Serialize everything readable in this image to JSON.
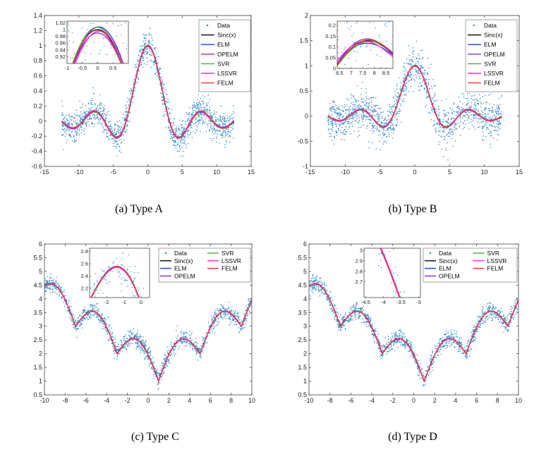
{
  "figure": {
    "captions": [
      "(a) Type A",
      "(b) Type B",
      "(c) Type C",
      "(d) Type D"
    ]
  },
  "series_styles": {
    "Data": {
      "color": "#2e86c1"
    },
    "Sinc(x)": {
      "color": "#000000"
    },
    "ELM": {
      "color": "#1f3fdc"
    },
    "OPELM": {
      "color": "#8a2be2"
    },
    "SVR": {
      "color": "#4aa832"
    },
    "LSSVR": {
      "color": "#ff22e0"
    },
    "FELM": {
      "color": "#e8343a"
    }
  },
  "chart_data": [
    {
      "type": "scatter",
      "title": "",
      "caption": "(a) Type A",
      "function": "sinc",
      "noise_level": 0.1,
      "xlim": [
        -15,
        15
      ],
      "ylim": [
        -0.6,
        1.4
      ],
      "xticks": [
        -15,
        -10,
        -5,
        0,
        5,
        10,
        15
      ],
      "yticks": [
        -0.6,
        -0.4,
        -0.2,
        0,
        0.2,
        0.4,
        0.6,
        0.8,
        1,
        1.2,
        1.4
      ],
      "xticklabels": [
        "-15",
        "-10",
        "-5",
        "0",
        "5",
        "10",
        "15"
      ],
      "yticklabels": [
        "-0.6",
        "-0.4",
        "-0.2",
        "0",
        "0.2",
        "0.4",
        "0.6",
        "0.8",
        "1",
        "1.2",
        "1.4"
      ],
      "x_range_data": [
        -12.5,
        12.5
      ],
      "legend": [
        "Data",
        "Sinc(x)",
        "ELM",
        "OPELM",
        "SVR",
        "LSSVR",
        "FELM"
      ],
      "legend_position": "top-right",
      "inset": {
        "position": "top-left",
        "xlim": [
          -1,
          1
        ],
        "ylim": [
          0.9,
          1.025
        ],
        "xticks": [
          -1,
          -0.5,
          0,
          0.5
        ],
        "yticks": [
          0.92,
          0.94,
          0.96,
          0.98,
          1,
          1.02
        ],
        "xticklabels": [
          "-1",
          "-0.5",
          "0",
          "0.5"
        ],
        "yticklabels": [
          "0.92",
          "0.94",
          "0.96",
          "0.98",
          "1",
          "1.02"
        ]
      }
    },
    {
      "type": "scatter",
      "title": "",
      "caption": "(b) Type B",
      "function": "sinc",
      "noise_level": 0.2,
      "xlim": [
        -15,
        15
      ],
      "ylim": [
        -1,
        2
      ],
      "xticks": [
        -15,
        -10,
        -5,
        0,
        5,
        10,
        15
      ],
      "yticks": [
        -1,
        -0.5,
        0,
        0.5,
        1,
        1.5,
        2
      ],
      "xticklabels": [
        "-15",
        "-10",
        "-5",
        "0",
        "5",
        "10",
        "15"
      ],
      "yticklabels": [
        "-1",
        "-0.5",
        "0",
        "0.5",
        "1",
        "1.5",
        "2"
      ],
      "x_range_data": [
        -12.5,
        12.5
      ],
      "legend": [
        "Data",
        "Sinc(x)",
        "ELM",
        "OPELM",
        "SVR",
        "LSSVR",
        "FELM"
      ],
      "legend_position": "top-right",
      "inset": {
        "position": "top-left",
        "xlim": [
          6.4,
          8.8
        ],
        "ylim": [
          0,
          0.22
        ],
        "xticks": [
          6.5,
          7,
          7.5,
          8,
          8.5
        ],
        "yticks": [
          0,
          0.05,
          0.1,
          0.15,
          0.2
        ],
        "xticklabels": [
          "6.5",
          "7",
          "7.5",
          "8",
          "8.5"
        ],
        "yticklabels": [
          "0",
          "0.05",
          "0.1",
          "0.15",
          "0.2"
        ]
      }
    },
    {
      "type": "scatter",
      "title": "",
      "caption": "(c) Type C",
      "function": "c_func",
      "noise_level": 0.15,
      "xlim": [
        -10,
        10
      ],
      "ylim": [
        0.5,
        6
      ],
      "xticks": [
        -10,
        -8,
        -6,
        -4,
        -2,
        0,
        2,
        4,
        6,
        8,
        10
      ],
      "yticks": [
        0.5,
        1,
        1.5,
        2,
        2.5,
        3,
        3.5,
        4,
        4.5,
        5,
        5.5,
        6
      ],
      "xticklabels": [
        "-10",
        "-8",
        "-6",
        "-4",
        "-2",
        "0",
        "2",
        "4",
        "6",
        "8",
        "10"
      ],
      "yticklabels": [
        "0.5",
        "1",
        "1.5",
        "2",
        "2.5",
        "3",
        "3.5",
        "4",
        "4.5",
        "5",
        "5.5",
        "6"
      ],
      "x_range_data": [
        -10,
        10
      ],
      "legend": [
        "Data",
        "Sinc(x)",
        "ELM",
        "OPELM",
        "SVR",
        "LSSVR",
        "FELM"
      ],
      "legend_position": "top-right",
      "inset": {
        "position": "top-left",
        "xlim": [
          -3,
          0.5
        ],
        "ylim": [
          2.05,
          2.85
        ],
        "xticks": [
          -2,
          -1,
          0
        ],
        "yticks": [
          2.2,
          2.4,
          2.6,
          2.8
        ],
        "xticklabels": [
          "-2",
          "-1",
          "0"
        ],
        "yticklabels": [
          "2.2",
          "2.4",
          "2.6",
          "2.8"
        ]
      }
    },
    {
      "type": "scatter",
      "title": "",
      "caption": "(d) Type D",
      "function": "c_func",
      "noise_level": 0.15,
      "xlim": [
        -10,
        10
      ],
      "ylim": [
        0.5,
        6
      ],
      "xticks": [
        -10,
        -8,
        -6,
        -4,
        -2,
        0,
        2,
        4,
        6,
        8,
        10
      ],
      "yticks": [
        0.5,
        1,
        1.5,
        2,
        2.5,
        3,
        3.5,
        4,
        4.5,
        5,
        5.5,
        6
      ],
      "xticklabels": [
        "-10",
        "-8",
        "-6",
        "-4",
        "-2",
        "0",
        "2",
        "4",
        "6",
        "8",
        "10"
      ],
      "yticklabels": [
        "0.5",
        "1",
        "1.5",
        "2",
        "2.5",
        "3",
        "3.5",
        "4",
        "4.5",
        "5",
        "5.5",
        "6"
      ],
      "x_range_data": [
        -10,
        10
      ],
      "legend": [
        "Data",
        "Sinc(x)",
        "ELM",
        "OPELM",
        "SVR",
        "LSSVR",
        "FELM"
      ],
      "legend_position": "top-right",
      "inset": {
        "position": "top-left",
        "xlim": [
          -4.55,
          -2.95
        ],
        "ylim": [
          2.55,
          3.02
        ],
        "xticks": [
          -4.5,
          -4,
          -3.5,
          -3
        ],
        "yticks": [
          2.7,
          2.8,
          2.9,
          3
        ],
        "xticklabels": [
          "-4.5",
          "-4",
          "-3.5",
          "-3"
        ],
        "yticklabels": [
          "2.7",
          "2.8",
          "2.9",
          "3"
        ]
      }
    }
  ]
}
